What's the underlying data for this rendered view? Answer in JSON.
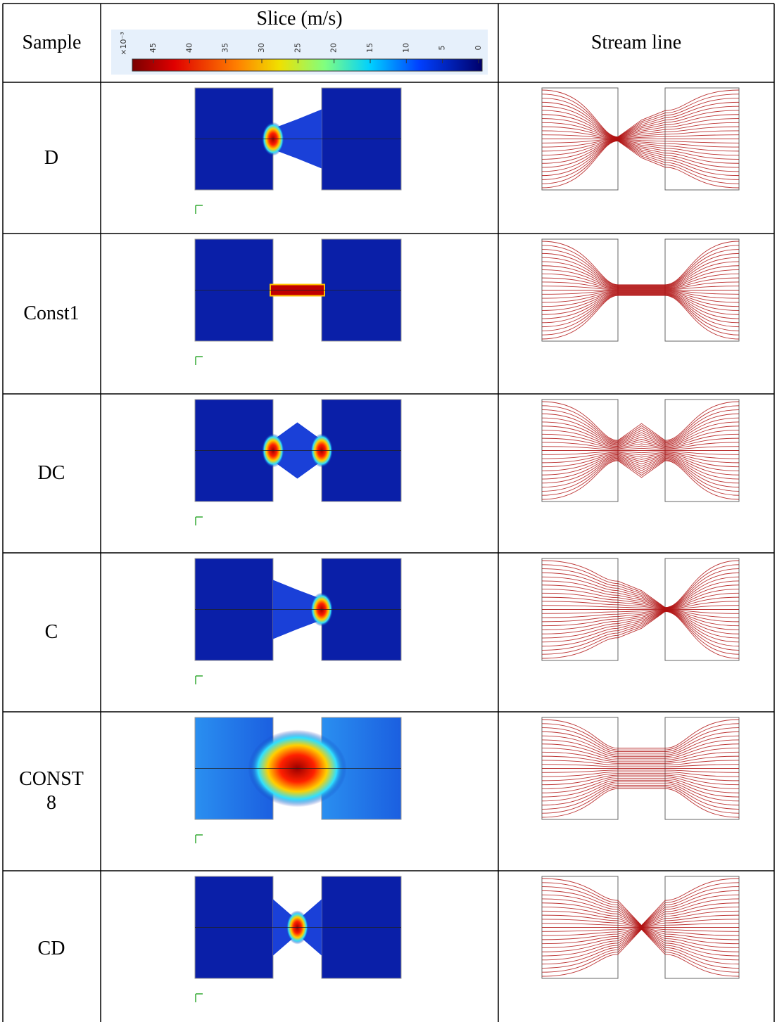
{
  "table": {
    "header": {
      "sample": "Sample",
      "slice": "Slice (m/s)",
      "stream": "Stream line"
    },
    "colorbar": {
      "multiplier": "×10⁻³",
      "ticks": [
        "45",
        "40",
        "35",
        "30",
        "25",
        "20",
        "15",
        "10",
        "5",
        "0"
      ]
    },
    "rows": [
      {
        "sample": "D"
      },
      {
        "sample": "Const1"
      },
      {
        "sample": "DC"
      },
      {
        "sample": "C"
      },
      {
        "sample": "CONST 8"
      },
      {
        "sample": "CD"
      }
    ]
  }
}
